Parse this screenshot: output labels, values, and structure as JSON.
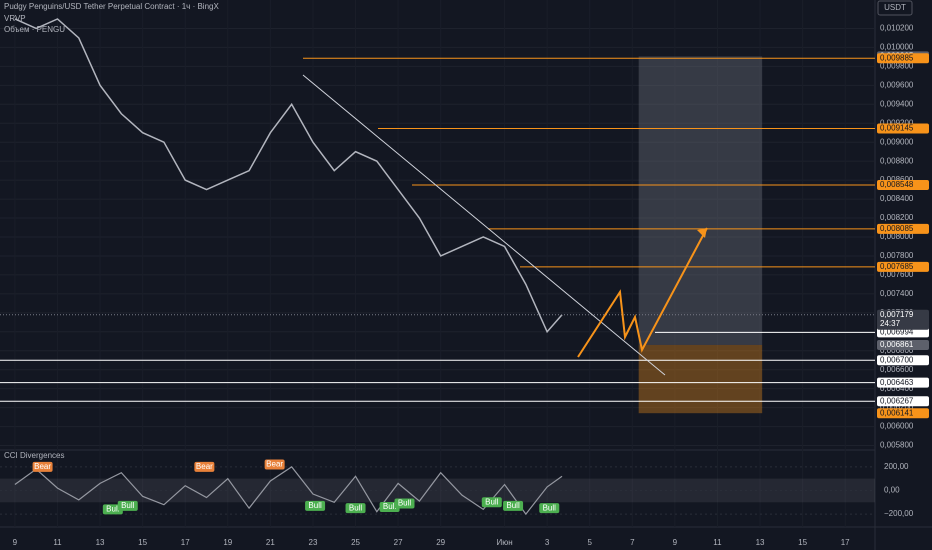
{
  "chart_data": [
    {
      "type": "line",
      "title": "Pudgy Penguins/USD Tether Perpetual Contract · 1ч · BingX",
      "subtitles": [
        "VRVP",
        "Объем · PENGU"
      ],
      "unit": "USDT",
      "color": "#b2b5be",
      "x": [
        0,
        1,
        2,
        3,
        4,
        5,
        6,
        7,
        8,
        9,
        10,
        11,
        12,
        13,
        14,
        15,
        16,
        17,
        18,
        19,
        20,
        21,
        22,
        23,
        24,
        25,
        25.7
      ],
      "values": [
        0.0103,
        0.0102,
        0.0103,
        0.0101,
        0.0096,
        0.0093,
        0.0091,
        0.009,
        0.0086,
        0.0085,
        0.0086,
        0.0087,
        0.0091,
        0.0094,
        0.009,
        0.0087,
        0.0089,
        0.0088,
        0.0085,
        0.0082,
        0.0078,
        0.0079,
        0.008,
        0.0079,
        0.0075,
        0.007,
        0.007179
      ],
      "xlim": [
        -0.7,
        40.4
      ],
      "xticks": [
        {
          "value": 0,
          "label": "9"
        },
        {
          "value": 2,
          "label": "11"
        },
        {
          "value": 4,
          "label": "13"
        },
        {
          "value": 6,
          "label": "15"
        },
        {
          "value": 8,
          "label": "17"
        },
        {
          "value": 10,
          "label": "19"
        },
        {
          "value": 12,
          "label": "21"
        },
        {
          "value": 14,
          "label": "23"
        },
        {
          "value": 16,
          "label": "25"
        },
        {
          "value": 18,
          "label": "27"
        },
        {
          "value": 20,
          "label": "29"
        },
        {
          "value": 23,
          "label": "Июн"
        },
        {
          "value": 25,
          "label": "3"
        },
        {
          "value": 27,
          "label": "5"
        },
        {
          "value": 29,
          "label": "7"
        },
        {
          "value": 31,
          "label": "9"
        },
        {
          "value": 33,
          "label": "11"
        },
        {
          "value": 35,
          "label": "13"
        },
        {
          "value": 37,
          "label": "15"
        },
        {
          "value": 39,
          "label": "17"
        }
      ],
      "ylim": [
        0.0057,
        0.0105
      ],
      "yticks": [
        {
          "value": 0.0058,
          "label": "0,005800"
        },
        {
          "value": 0.006,
          "label": "0,006000"
        },
        {
          "value": 0.0062,
          "label": "0,006200"
        },
        {
          "value": 0.0064,
          "label": "0,006400"
        },
        {
          "value": 0.0066,
          "label": "0,006600"
        },
        {
          "value": 0.0068,
          "label": "0,006800"
        },
        {
          "value": 0.007,
          "label": "0,007000"
        },
        {
          "value": 0.0072,
          "label": "0,007200"
        },
        {
          "value": 0.0074,
          "label": "0,007400"
        },
        {
          "value": 0.0076,
          "label": "0,007600"
        },
        {
          "value": 0.0078,
          "label": "0,007800"
        },
        {
          "value": 0.008,
          "label": "0,008000"
        },
        {
          "value": 0.0082,
          "label": "0,008200"
        },
        {
          "value": 0.0084,
          "label": "0,008400"
        },
        {
          "value": 0.0086,
          "label": "0,008600"
        },
        {
          "value": 0.0088,
          "label": "0,008800"
        },
        {
          "value": 0.009,
          "label": "0,009000"
        },
        {
          "value": 0.0092,
          "label": "0,009200"
        },
        {
          "value": 0.0094,
          "label": "0,009400"
        },
        {
          "value": 0.0096,
          "label": "0,009600"
        },
        {
          "value": 0.0098,
          "label": "0,009800"
        },
        {
          "value": 0.01,
          "label": "0,010000"
        },
        {
          "value": 0.0102,
          "label": "0,010200"
        }
      ],
      "levels": [
        {
          "value": 0.009905,
          "label": "0,009905",
          "color": "#5d606b"
        },
        {
          "value": 0.009885,
          "label": "0,009885",
          "color": "#f7931a"
        },
        {
          "value": 0.009145,
          "label": "0,009145",
          "color": "#f7931a"
        },
        {
          "value": 0.008548,
          "label": "0,008548",
          "color": "#f7931a"
        },
        {
          "value": 0.008085,
          "label": "0,008085",
          "color": "#f7931a"
        },
        {
          "value": 0.007685,
          "label": "0,007685",
          "color": "#f7931a"
        },
        {
          "value": 0.006994,
          "label": "0,006994",
          "color": "#ffffff"
        },
        {
          "value": 0.006861,
          "label": "0,006861",
          "color": "#5d606b"
        },
        {
          "value": 0.0067,
          "label": "0,006700",
          "color": "#ffffff"
        },
        {
          "value": 0.006463,
          "label": "0,006463",
          "color": "#ffffff"
        },
        {
          "value": 0.006267,
          "label": "0,006267",
          "color": "#ffffff"
        },
        {
          "value": 0.006141,
          "label": "0,006141",
          "color": "#f7931a"
        }
      ],
      "last": {
        "value": 0.007179,
        "label": "0,007179",
        "countdown": "24:37"
      },
      "position": {
        "from": 29.3,
        "to": 35.1,
        "target": 0.009905,
        "entry": 0.006861,
        "stop": 0.006141
      }
    },
    {
      "type": "line",
      "title": "CCI Divergences",
      "color": "#9598a1",
      "x": [
        0,
        1,
        2,
        3,
        4,
        5,
        6,
        7,
        8,
        9,
        10,
        11,
        12,
        13,
        14,
        15,
        16,
        17,
        18,
        19,
        20,
        21,
        22,
        23,
        24,
        25,
        25.7
      ],
      "values": [
        50,
        180,
        20,
        -80,
        60,
        150,
        -50,
        -120,
        40,
        -60,
        100,
        -150,
        80,
        200,
        -30,
        -100,
        120,
        -180,
        60,
        -90,
        150,
        -40,
        -160,
        50,
        -200,
        30,
        120
      ],
      "ylim": [
        -250,
        300
      ],
      "yticks": [
        {
          "value": 200,
          "label": "200,00"
        },
        {
          "value": 0,
          "label": "0,00"
        },
        {
          "value": -200,
          "label": "−200,00"
        }
      ],
      "band": [
        -100,
        100
      ],
      "signals": [
        {
          "x": 1.3,
          "value": 200,
          "label": "Bear"
        },
        {
          "x": 8.9,
          "value": 200,
          "label": "Bear"
        },
        {
          "x": 12.2,
          "value": 220,
          "label": "Bear"
        },
        {
          "x": 4.6,
          "value": -160,
          "label": "Bull"
        },
        {
          "x": 5.3,
          "value": -130,
          "label": "Bull"
        },
        {
          "x": 14.1,
          "value": -130,
          "label": "Bull"
        },
        {
          "x": 16,
          "value": -150,
          "label": "Bull"
        },
        {
          "x": 17.6,
          "value": -140,
          "label": "Bull"
        },
        {
          "x": 18.3,
          "value": -110,
          "label": "Bull"
        },
        {
          "x": 22.4,
          "value": -100,
          "label": "Bull"
        },
        {
          "x": 23.4,
          "value": -130,
          "label": "Bull"
        },
        {
          "x": 25.1,
          "value": -150,
          "label": "Bull"
        }
      ]
    }
  ]
}
